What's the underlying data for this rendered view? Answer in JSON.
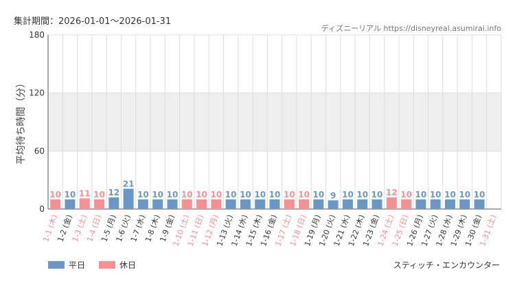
{
  "header": {
    "period_label": "集計期間：2026-01-01〜2026-01-31",
    "credit": "ディズニーリアル https://disneyreal.asumirai.info"
  },
  "colors": {
    "weekday": "#6b97c6",
    "holiday": "#f69093",
    "band": "#efefef",
    "grid": "#dddddd"
  },
  "legend": {
    "weekday_label": "平日",
    "holiday_label": "休日"
  },
  "attraction_name": "スティッチ・エンカウンター",
  "chart_data": {
    "type": "bar",
    "title": "",
    "ylabel": "平均待ち時間（分）",
    "xlabel": "",
    "ylim": [
      0,
      180
    ],
    "yticks": [
      0,
      60,
      120,
      180
    ],
    "shaded_band": [
      60,
      120
    ],
    "grid": true,
    "legend_position": "bottom-left",
    "series": [
      {
        "name": "平日",
        "color": "#6b97c6"
      },
      {
        "name": "休日",
        "color": "#f69093"
      }
    ],
    "points": [
      {
        "label": "1-1 (木)",
        "value": 10,
        "holiday": true
      },
      {
        "label": "1-2 (金)",
        "value": 10,
        "holiday": false
      },
      {
        "label": "1-3 (土)",
        "value": 11,
        "holiday": true
      },
      {
        "label": "1-4 (日)",
        "value": 10,
        "holiday": true
      },
      {
        "label": "1-5 (月)",
        "value": 12,
        "holiday": false
      },
      {
        "label": "1-6 (火)",
        "value": 21,
        "holiday": false
      },
      {
        "label": "1-7 (水)",
        "value": 10,
        "holiday": false
      },
      {
        "label": "1-8 (木)",
        "value": 10,
        "holiday": false
      },
      {
        "label": "1-9 (金)",
        "value": 10,
        "holiday": false
      },
      {
        "label": "1-10 (土)",
        "value": 10,
        "holiday": true
      },
      {
        "label": "1-11 (日)",
        "value": 10,
        "holiday": true
      },
      {
        "label": "1-12 (月)",
        "value": 10,
        "holiday": true
      },
      {
        "label": "1-13 (火)",
        "value": 10,
        "holiday": false
      },
      {
        "label": "1-14 (水)",
        "value": 10,
        "holiday": false
      },
      {
        "label": "1-15 (木)",
        "value": 10,
        "holiday": false
      },
      {
        "label": "1-16 (金)",
        "value": 10,
        "holiday": false
      },
      {
        "label": "1-17 (土)",
        "value": 10,
        "holiday": true
      },
      {
        "label": "1-18 (日)",
        "value": 10,
        "holiday": true
      },
      {
        "label": "1-19 (月)",
        "value": 10,
        "holiday": false
      },
      {
        "label": "1-20 (火)",
        "value": 9,
        "holiday": false
      },
      {
        "label": "1-21 (水)",
        "value": 10,
        "holiday": false
      },
      {
        "label": "1-22 (木)",
        "value": 10,
        "holiday": false
      },
      {
        "label": "1-23 (金)",
        "value": 10,
        "holiday": false
      },
      {
        "label": "1-24 (土)",
        "value": 12,
        "holiday": true
      },
      {
        "label": "1-25 (日)",
        "value": 10,
        "holiday": true
      },
      {
        "label": "1-26 (月)",
        "value": 10,
        "holiday": false
      },
      {
        "label": "1-27 (火)",
        "value": 10,
        "holiday": false
      },
      {
        "label": "1-28 (水)",
        "value": 10,
        "holiday": false
      },
      {
        "label": "1-29 (木)",
        "value": 10,
        "holiday": false
      },
      {
        "label": "1-30 (金)",
        "value": 10,
        "holiday": false
      },
      {
        "label": "1-31 (土)",
        "value": null,
        "holiday": true
      }
    ]
  }
}
